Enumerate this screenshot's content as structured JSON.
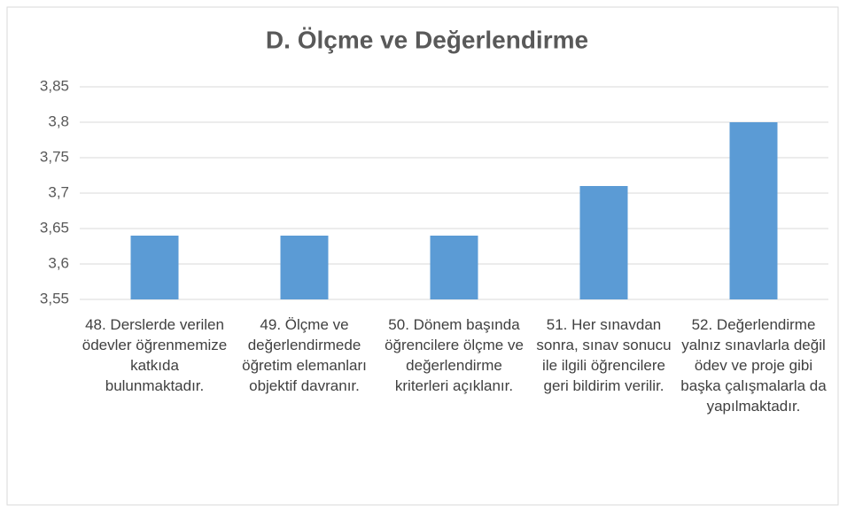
{
  "chart_data": {
    "type": "bar",
    "title": "D. Ölçme ve Değerlendirme",
    "categories": [
      "48. Derslerde verilen ödevler öğrenmemize katkıda bulunmaktadır.",
      "49. Ölçme ve değerlendirmede öğretim elemanları objektif davranır.",
      "50. Dönem başında öğrencilere ölçme ve değerlendirme kriterleri açıklanır.",
      "51. Her sınavdan sonra, sınav sonucu ile ilgili öğrencilere geri bildirim verilir.",
      "52. Değerlendirme yalnız sınavlarla değil ödev ve proje gibi başka çalışmalarla da yapılmaktadır."
    ],
    "values": [
      3.64,
      3.64,
      3.64,
      3.71,
      3.8
    ],
    "color": "#5b9bd5",
    "ylim": [
      3.55,
      3.85
    ],
    "yticks": [
      {
        "value": 3.55,
        "label": "3,55"
      },
      {
        "value": 3.6,
        "label": "3,6"
      },
      {
        "value": 3.65,
        "label": "3,65"
      },
      {
        "value": 3.7,
        "label": "3,7"
      },
      {
        "value": 3.75,
        "label": "3,75"
      },
      {
        "value": 3.8,
        "label": "3,8"
      },
      {
        "value": 3.85,
        "label": "3,85"
      }
    ],
    "grid": true
  }
}
